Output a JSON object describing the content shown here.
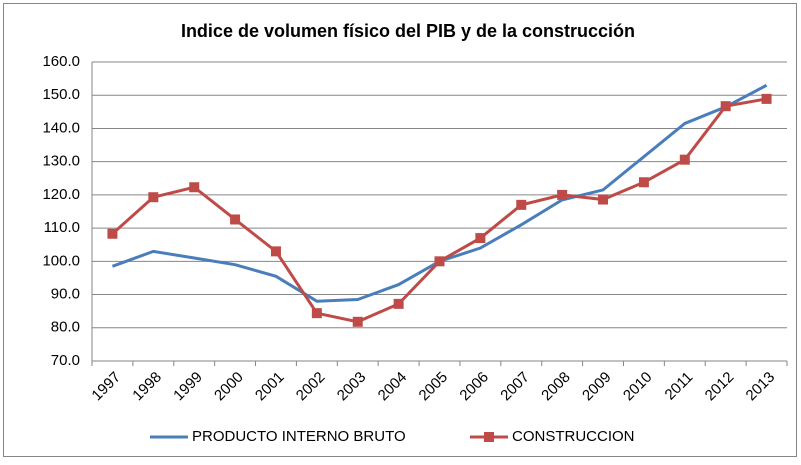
{
  "chart_data": {
    "type": "line",
    "title": "Indice de volumen físico del PIB y de la construcción",
    "categories": [
      "1997",
      "1998",
      "1999",
      "2000",
      "2001",
      "2002",
      "2003",
      "2004",
      "2005",
      "2006",
      "2007",
      "2008",
      "2009",
      "2010",
      "2011",
      "2012",
      "2013"
    ],
    "series": [
      {
        "name": "PRODUCTO INTERNO BRUTO",
        "color": "#4a7ebb",
        "marker": "none",
        "values": [
          98.5,
          103,
          101,
          99,
          95.5,
          88,
          88.5,
          93,
          100,
          104,
          111,
          118.5,
          121.5,
          131.5,
          141.5,
          146.5,
          153
        ]
      },
      {
        "name": "CONSTRUCCION",
        "color": "#be4b48",
        "marker": "square",
        "values": [
          108.3,
          119.3,
          122.3,
          112.6,
          103,
          84.4,
          81.8,
          87.2,
          100,
          107,
          117,
          120,
          118.6,
          123.8,
          130.6,
          146.7,
          148.9
        ]
      }
    ],
    "ylim": [
      70,
      160
    ],
    "yticks": [
      {
        "value": 70,
        "label": "70.0"
      },
      {
        "value": 80,
        "label": "80.0"
      },
      {
        "value": 90,
        "label": "90.0"
      },
      {
        "value": 100,
        "label": "100.0"
      },
      {
        "value": 110,
        "label": "110.0"
      },
      {
        "value": 120,
        "label": "120.0"
      },
      {
        "value": 130,
        "label": "130.0"
      },
      {
        "value": 140,
        "label": "140.0"
      },
      {
        "value": 150,
        "label": "150.0"
      },
      {
        "value": 160,
        "label": "160.0"
      }
    ],
    "grid": true,
    "legend": "bottom"
  }
}
